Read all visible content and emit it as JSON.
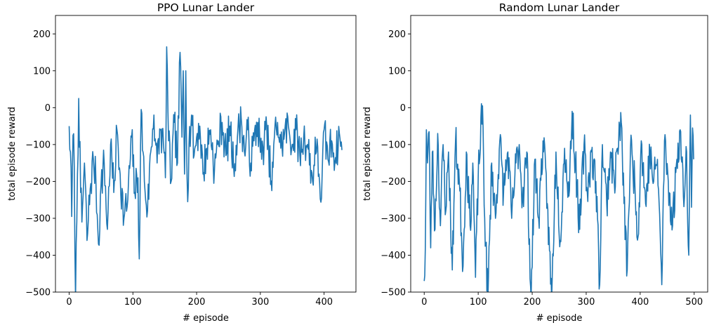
{
  "chart_data": [
    {
      "type": "line",
      "title": "PPO Lunar Lander",
      "xlabel": "# episode",
      "ylabel": "total episode reward",
      "xlim": [
        -21.5,
        450
      ],
      "ylim": [
        -500,
        250
      ],
      "xticks": [
        0,
        100,
        200,
        300,
        400
      ],
      "yticks": [
        -500,
        -400,
        -300,
        -200,
        -100,
        0,
        100,
        200
      ],
      "xtick_labels": [
        "0",
        "100",
        "200",
        "300",
        "400"
      ],
      "ytick_labels": [
        "−500",
        "−400",
        "−300",
        "−200",
        "−100",
        "0",
        "100",
        "200"
      ],
      "grid": false,
      "color": "#1f77b4",
      "n_episodes": 429,
      "seed": 7,
      "anchors": [
        [
          0,
          -50
        ],
        [
          2,
          -120
        ],
        [
          4,
          -295
        ],
        [
          6,
          -75
        ],
        [
          8,
          -160
        ],
        [
          10,
          -520
        ],
        [
          13,
          -180
        ],
        [
          15,
          25
        ],
        [
          18,
          -230
        ],
        [
          20,
          -310
        ],
        [
          24,
          -150
        ],
        [
          28,
          -360
        ],
        [
          33,
          -220
        ],
        [
          38,
          -140
        ],
        [
          42,
          -200
        ],
        [
          46,
          -370
        ],
        [
          50,
          -210
        ],
        [
          55,
          -150
        ],
        [
          60,
          -330
        ],
        [
          65,
          -100
        ],
        [
          70,
          -230
        ],
        [
          75,
          -60
        ],
        [
          80,
          -180
        ],
        [
          86,
          -300
        ],
        [
          92,
          -250
        ],
        [
          98,
          -80
        ],
        [
          103,
          -230
        ],
        [
          108,
          -190
        ],
        [
          110,
          -410
        ],
        [
          113,
          -5
        ],
        [
          118,
          -200
        ],
        [
          123,
          -280
        ],
        [
          128,
          -120
        ],
        [
          133,
          -20
        ],
        [
          138,
          -150
        ],
        [
          143,
          -60
        ],
        [
          148,
          -100
        ],
        [
          151,
          -190
        ],
        [
          153,
          165
        ],
        [
          156,
          -90
        ],
        [
          160,
          -200
        ],
        [
          165,
          -40
        ],
        [
          170,
          -150
        ],
        [
          174,
          150
        ],
        [
          177,
          -80
        ],
        [
          179,
          100
        ],
        [
          181,
          -180
        ],
        [
          183,
          100
        ],
        [
          186,
          -255
        ],
        [
          188,
          -100
        ],
        [
          192,
          -20
        ],
        [
          196,
          -130
        ],
        [
          200,
          -80
        ],
        [
          205,
          -50
        ],
        [
          210,
          -180
        ],
        [
          216,
          -110
        ],
        [
          222,
          -60
        ],
        [
          228,
          -170
        ],
        [
          234,
          -90
        ],
        [
          240,
          -40
        ],
        [
          246,
          -130
        ],
        [
          252,
          -50
        ],
        [
          258,
          -160
        ],
        [
          264,
          -80
        ],
        [
          270,
          -30
        ],
        [
          275,
          -120
        ],
        [
          280,
          -60
        ],
        [
          285,
          -150
        ],
        [
          290,
          -90
        ],
        [
          296,
          -40
        ],
        [
          302,
          -140
        ],
        [
          308,
          -60
        ],
        [
          313,
          -110
        ],
        [
          318,
          -225
        ],
        [
          322,
          -80
        ],
        [
          327,
          -40
        ],
        [
          332,
          -110
        ],
        [
          338,
          -70
        ],
        [
          344,
          -50
        ],
        [
          350,
          -100
        ],
        [
          356,
          -60
        ],
        [
          362,
          -130
        ],
        [
          368,
          -80
        ],
        [
          374,
          -100
        ],
        [
          380,
          -170
        ],
        [
          383,
          -210
        ],
        [
          386,
          -80
        ],
        [
          392,
          -180
        ],
        [
          396,
          -245
        ],
        [
          400,
          -60
        ],
        [
          406,
          -140
        ],
        [
          412,
          -90
        ],
        [
          418,
          -135
        ],
        [
          424,
          -70
        ],
        [
          428,
          -115
        ]
      ]
    },
    {
      "type": "line",
      "title": "Random Lunar Lander",
      "xlabel": "# episode",
      "ylabel": "total episode reward",
      "xlim": [
        -25,
        525
      ],
      "ylim": [
        -500,
        250
      ],
      "xticks": [
        0,
        100,
        200,
        300,
        400,
        500
      ],
      "yticks": [
        -500,
        -400,
        -300,
        -200,
        -100,
        0,
        100,
        200
      ],
      "xtick_labels": [
        "0",
        "100",
        "200",
        "300",
        "400",
        "500"
      ],
      "ytick_labels": [
        "−500",
        "−400",
        "−300",
        "−200",
        "−100",
        "0",
        "100",
        "200"
      ],
      "grid": false,
      "color": "#1f77b4",
      "n_episodes": 500,
      "seed": 23,
      "anchors": [
        [
          0,
          -470
        ],
        [
          2,
          -385
        ],
        [
          4,
          -60
        ],
        [
          6,
          -150
        ],
        [
          9,
          -65
        ],
        [
          12,
          -380
        ],
        [
          15,
          -120
        ],
        [
          20,
          -330
        ],
        [
          25,
          -70
        ],
        [
          30,
          -320
        ],
        [
          35,
          -100
        ],
        [
          40,
          -280
        ],
        [
          45,
          -120
        ],
        [
          52,
          -440
        ],
        [
          58,
          -90
        ],
        [
          65,
          -200
        ],
        [
          72,
          -430
        ],
        [
          78,
          -120
        ],
        [
          85,
          -320
        ],
        [
          90,
          -150
        ],
        [
          95,
          -460
        ],
        [
          100,
          -190
        ],
        [
          108,
          5
        ],
        [
          112,
          -300
        ],
        [
          118,
          -520
        ],
        [
          125,
          -150
        ],
        [
          132,
          -300
        ],
        [
          140,
          -90
        ],
        [
          147,
          -230
        ],
        [
          155,
          -120
        ],
        [
          162,
          -300
        ],
        [
          170,
          -150
        ],
        [
          176,
          -100
        ],
        [
          182,
          -250
        ],
        [
          190,
          -120
        ],
        [
          198,
          -520
        ],
        [
          205,
          -140
        ],
        [
          212,
          -300
        ],
        [
          220,
          -90
        ],
        [
          228,
          -260
        ],
        [
          236,
          -520
        ],
        [
          244,
          -120
        ],
        [
          252,
          -360
        ],
        [
          260,
          -110
        ],
        [
          268,
          -240
        ],
        [
          274,
          -10
        ],
        [
          280,
          -150
        ],
        [
          288,
          -330
        ],
        [
          296,
          -100
        ],
        [
          302,
          -230
        ],
        [
          310,
          -120
        ],
        [
          318,
          -200
        ],
        [
          325,
          -480
        ],
        [
          330,
          -100
        ],
        [
          338,
          -260
        ],
        [
          345,
          -120
        ],
        [
          352,
          -200
        ],
        [
          358,
          -110
        ],
        [
          365,
          -40
        ],
        [
          370,
          -260
        ],
        [
          376,
          -440
        ],
        [
          382,
          -110
        ],
        [
          390,
          -200
        ],
        [
          396,
          -350
        ],
        [
          402,
          -90
        ],
        [
          410,
          -260
        ],
        [
          418,
          -120
        ],
        [
          425,
          -200
        ],
        [
          432,
          -140
        ],
        [
          440,
          -480
        ],
        [
          445,
          -90
        ],
        [
          452,
          -200
        ],
        [
          460,
          -320
        ],
        [
          468,
          -140
        ],
        [
          474,
          -60
        ],
        [
          480,
          -240
        ],
        [
          486,
          -120
        ],
        [
          490,
          -400
        ],
        [
          493,
          -20
        ],
        [
          495,
          -270
        ],
        [
          497,
          -55
        ],
        [
          499,
          -140
        ]
      ]
    }
  ]
}
